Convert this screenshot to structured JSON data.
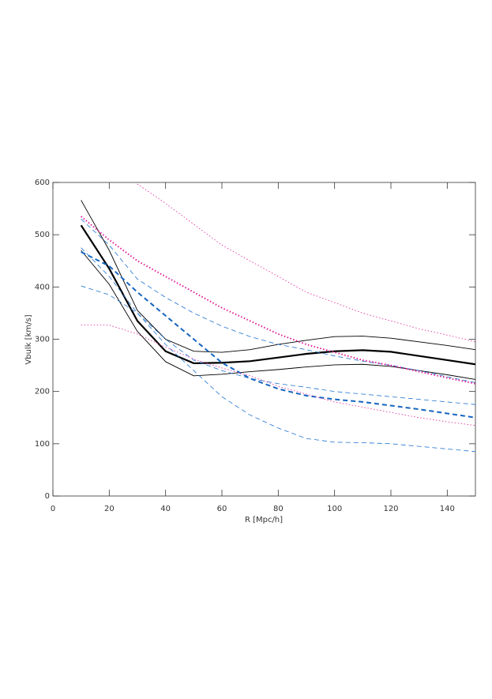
{
  "chart_data": {
    "type": "line",
    "xlabel": "R [Mpc/h]",
    "ylabel": "Vbulk [km/s]",
    "x": [
      10,
      20,
      30,
      40,
      50,
      60,
      70,
      80,
      90,
      100,
      110,
      120,
      130,
      140,
      150
    ],
    "xlim": [
      0,
      150
    ],
    "xticks": [
      0,
      20,
      40,
      60,
      80,
      100,
      120,
      140
    ],
    "ylim": [
      0,
      600
    ],
    "yticks": [
      0,
      100,
      200,
      300,
      400,
      500,
      600
    ],
    "series": [
      {
        "color": "#000000",
        "width": 2.2,
        "dash": "solid",
        "values": [
          518,
          435,
          335,
          277,
          254,
          255,
          258,
          265,
          272,
          277,
          279,
          276,
          268,
          260,
          252
        ]
      },
      {
        "color": "#000000",
        "width": 0.9,
        "dash": "solid",
        "values": [
          566,
          470,
          355,
          300,
          277,
          275,
          280,
          290,
          298,
          305,
          306,
          302,
          295,
          288,
          280
        ]
      },
      {
        "color": "#000000",
        "width": 0.9,
        "dash": "solid",
        "values": [
          470,
          405,
          315,
          257,
          230,
          233,
          238,
          242,
          247,
          251,
          252,
          248,
          240,
          232,
          223
        ]
      },
      {
        "color": "#1565c0",
        "width": 2,
        "dash": "dashed",
        "values": [
          467,
          440,
          390,
          345,
          300,
          255,
          225,
          205,
          192,
          185,
          180,
          173,
          166,
          158,
          150
        ]
      },
      {
        "color": "#1e73d0",
        "width": 0.8,
        "dash": "dashed",
        "values": [
          530,
          480,
          415,
          380,
          350,
          325,
          305,
          290,
          280,
          268,
          258,
          250,
          240,
          228,
          217
        ]
      },
      {
        "color": "#1e73d0",
        "width": 0.8,
        "dash": "dashed",
        "values": [
          475,
          420,
          350,
          290,
          240,
          190,
          155,
          130,
          110,
          103,
          102,
          100,
          95,
          90,
          85
        ]
      },
      {
        "color": "#1e73d0",
        "width": 0.8,
        "dash": "dashed",
        "values": [
          402,
          385,
          350,
          300,
          260,
          240,
          225,
          215,
          208,
          200,
          195,
          190,
          185,
          180,
          175
        ]
      },
      {
        "color": "#e0209a",
        "width": 2,
        "dash": "dotted",
        "values": [
          535,
          490,
          450,
          420,
          390,
          360,
          335,
          310,
          290,
          275,
          260,
          250,
          238,
          226,
          215
        ]
      },
      {
        "color": "#e0209a",
        "width": 0.8,
        "dash": "dotted",
        "values": [
          null,
          null,
          597,
          560,
          520,
          480,
          450,
          420,
          390,
          370,
          350,
          335,
          320,
          308,
          295
        ]
      },
      {
        "color": "#e0209a",
        "width": 0.8,
        "dash": "dotted",
        "values": [
          327,
          327,
          310,
          285,
          262,
          245,
          230,
          210,
          195,
          180,
          170,
          160,
          150,
          142,
          135
        ]
      }
    ]
  }
}
